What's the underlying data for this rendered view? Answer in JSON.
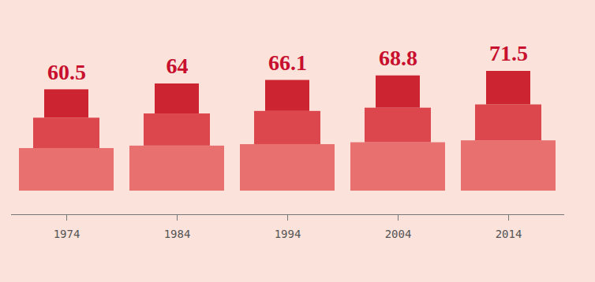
{
  "chart_data": {
    "type": "bar",
    "categories": [
      "1974",
      "1984",
      "1994",
      "2004",
      "2014"
    ],
    "values": [
      60.5,
      64,
      66.1,
      68.8,
      71.5
    ],
    "data_labels": true,
    "tick_labels": "x"
  }
}
